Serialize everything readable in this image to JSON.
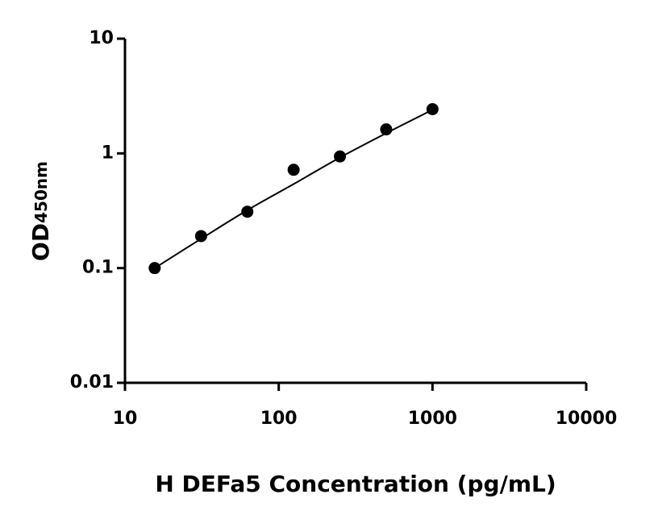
{
  "chart_data": {
    "type": "scatter",
    "xlabel": "H DEFa5 Concentration (pg/mL)",
    "ylabel": {
      "main": "OD",
      "sub": "450nm"
    },
    "x_log": true,
    "y_log": true,
    "xlim": [
      10,
      10000
    ],
    "xticks": [
      10,
      100,
      1000,
      10000
    ],
    "ylim": [
      0.01,
      10
    ],
    "yticks": [
      0.01,
      0.1,
      1,
      10
    ],
    "color": "#000000",
    "x": [
      15.6,
      31.25,
      62.5,
      125,
      250,
      500,
      1000
    ],
    "values": [
      0.1,
      0.19,
      0.31,
      0.72,
      0.94,
      1.62,
      2.43
    ],
    "curve": {
      "x": [
        15.6,
        31.25,
        62.5,
        125,
        250,
        500,
        1000
      ],
      "values": [
        0.1,
        0.18,
        0.32,
        0.54,
        0.92,
        1.5,
        2.4
      ]
    }
  }
}
